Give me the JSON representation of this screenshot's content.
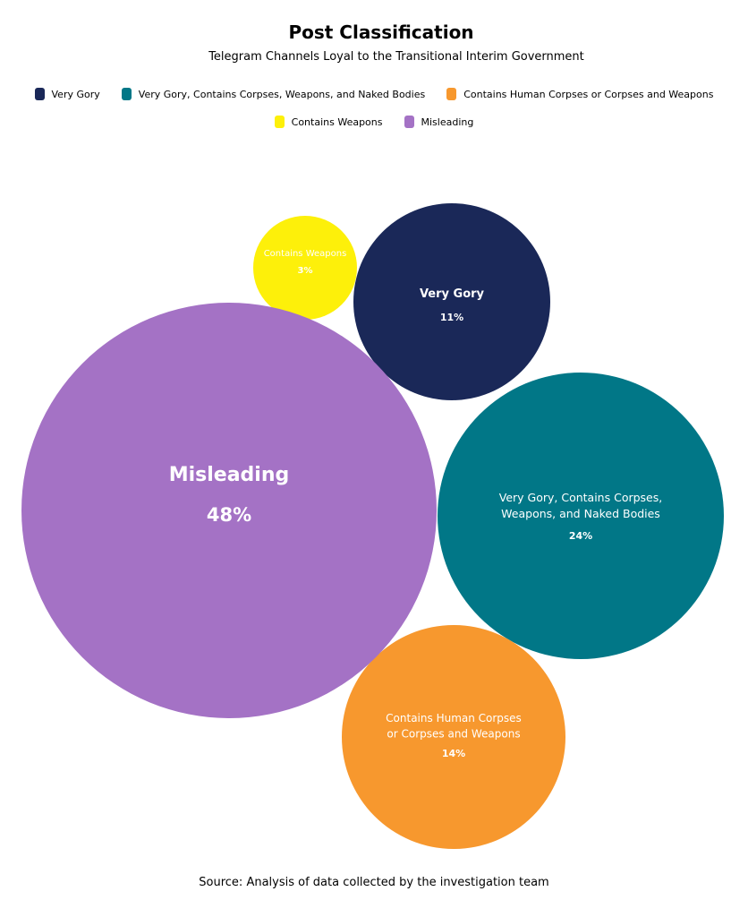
{
  "chart_data": {
    "type": "bubble",
    "title": "Post Classification",
    "subtitle": "Telegram Channels Loyal to the Transitional Interim Government",
    "legend_placement": "top",
    "items": [
      {
        "name": "Very Gory",
        "label_lines": [
          "Very Gory"
        ],
        "value": 11,
        "value_label": "11%",
        "color": "#1a2858"
      },
      {
        "name": "Very Gory, Contains Corpses, Weapons, and Naked Bodies",
        "label_lines": [
          "Very Gory, Contains Corpses,",
          "Weapons, and Naked Bodies"
        ],
        "value": 24,
        "value_label": "24%",
        "color": "#017787"
      },
      {
        "name": "Contains Human Corpses or Corpses and Weapons",
        "label_lines": [
          "Contains Human Corpses",
          "or Corpses and Weapons"
        ],
        "value": 14,
        "value_label": "14%",
        "color": "#f7982e"
      },
      {
        "name": "Contains Weapons",
        "label_lines": [
          "Contains Weapons"
        ],
        "value": 3,
        "value_label": "3%",
        "color": "#fdf00a"
      },
      {
        "name": "Misleading",
        "label_lines": [
          "Misleading"
        ],
        "value": 48,
        "value_label": "48%",
        "color": "#a472c5"
      }
    ],
    "source": "Source: Analysis of data collected by the investigation team"
  }
}
